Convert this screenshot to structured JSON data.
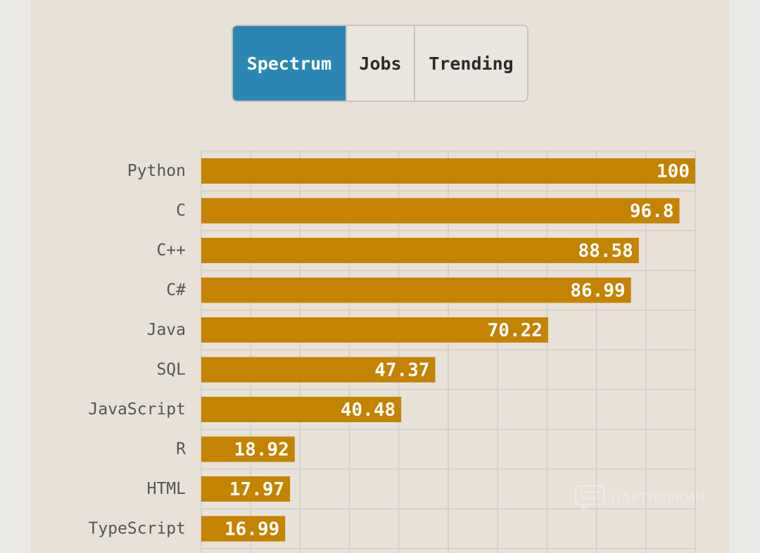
{
  "tabs": [
    {
      "label": "Spectrum",
      "active": true
    },
    {
      "label": "Jobs",
      "active": false
    },
    {
      "label": "Trending",
      "active": false
    }
  ],
  "watermark": {
    "text": "ПАРТНЕРКИН"
  },
  "colors": {
    "bar": "#c48300",
    "tab_active": "#2b86b4",
    "label_text": "#555555",
    "value_text": "#ffffff",
    "grid": "#d6d2cb"
  },
  "chart_data": {
    "type": "bar",
    "orientation": "horizontal",
    "categories": [
      "Python",
      "C",
      "C++",
      "C#",
      "Java",
      "SQL",
      "JavaScript",
      "R",
      "HTML",
      "TypeScript"
    ],
    "values": [
      100,
      96.8,
      88.58,
      86.99,
      70.22,
      47.37,
      40.48,
      18.92,
      17.97,
      16.99
    ],
    "value_labels": [
      "100",
      "96.8",
      "88.58",
      "86.99",
      "70.22",
      "47.37",
      "40.48",
      "18.92",
      "17.97",
      "16.99"
    ],
    "xlim": [
      0,
      100
    ],
    "grid": true,
    "title": "",
    "xlabel": "",
    "ylabel": ""
  }
}
